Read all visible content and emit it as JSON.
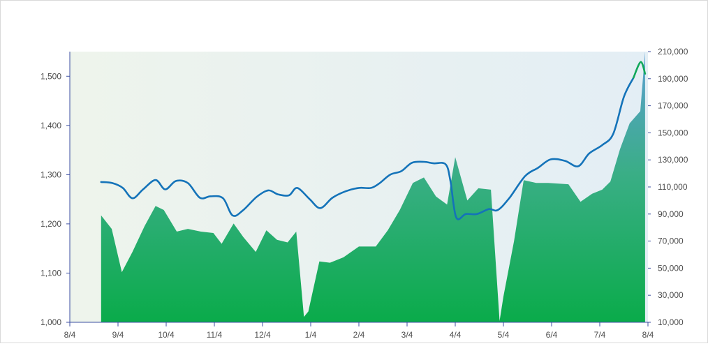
{
  "chart_data": {
    "type": "area",
    "title": "",
    "xlabel": "",
    "ylabel": "",
    "x_ticks": [
      "8/4",
      "9/4",
      "10/4",
      "11/4",
      "12/4",
      "1/4",
      "2/4",
      "3/4",
      "4/4",
      "5/4",
      "6/4",
      "7/4",
      "8/4"
    ],
    "x_range": [
      0,
      12
    ],
    "left_axis": {
      "range": [
        1000,
        1550
      ],
      "ticks": [
        "1,000",
        "1,100",
        "1,200",
        "1,300",
        "1,400",
        "1,500"
      ]
    },
    "right_axis": {
      "range": [
        10000,
        210000
      ],
      "ticks": [
        "10,000",
        "30,000",
        "50,000",
        "70,000",
        "90,000",
        "110,000",
        "130,000",
        "150,000",
        "170,000",
        "190,000",
        "210,000"
      ]
    },
    "grid": false,
    "legend": "none",
    "colors": {
      "area_bottom": "#0aab4a",
      "area_top": "#3aae86",
      "area_peak": "#5b9fd4",
      "line_main": "#1473b9",
      "line_recent": "#11a85a",
      "axis": "#3b4ea0",
      "plot_bg_left": "#eef4ec",
      "plot_bg_right": "#e3eef5"
    },
    "series": [
      {
        "axis": "right",
        "style": "area",
        "x": [
          0.65,
          0.87,
          1.08,
          1.3,
          1.55,
          1.78,
          1.95,
          2.22,
          2.45,
          2.72,
          2.98,
          3.15,
          3.4,
          3.6,
          3.86,
          4.08,
          4.3,
          4.52,
          4.7,
          4.86,
          4.95,
          5.18,
          5.4,
          5.68,
          6.0,
          6.35,
          6.6,
          6.85,
          7.12,
          7.35,
          7.6,
          7.83,
          8.0,
          8.25,
          8.48,
          8.74,
          8.92,
          9.0,
          9.22,
          9.42,
          9.68,
          9.93,
          10.35,
          10.6,
          10.84,
          11.05,
          11.22,
          11.42,
          11.62,
          11.84,
          11.94
        ],
        "values": [
          89000,
          79000,
          47000,
          62000,
          81000,
          96000,
          93000,
          77000,
          79000,
          77000,
          76000,
          68000,
          83000,
          73000,
          62000,
          78000,
          71000,
          69000,
          77000,
          14000,
          18000,
          55000,
          54000,
          58000,
          66000,
          66000,
          78000,
          93000,
          113000,
          117000,
          103000,
          97000,
          132000,
          100000,
          109000,
          108000,
          11000,
          29000,
          70000,
          115000,
          113000,
          113000,
          112000,
          99000,
          105000,
          108000,
          114000,
          138000,
          157000,
          166000,
          212000
        ]
      },
      {
        "axis": "left",
        "style": "line",
        "x": [
          0.65,
          0.88,
          1.1,
          1.3,
          1.52,
          1.78,
          1.98,
          2.2,
          2.45,
          2.7,
          2.92,
          3.18,
          3.38,
          3.6,
          3.88,
          4.12,
          4.32,
          4.55,
          4.72,
          4.98,
          5.2,
          5.45,
          5.72,
          6.0,
          6.25,
          6.42,
          6.65,
          6.88,
          7.1,
          7.35,
          7.55,
          7.8,
          7.9,
          8.02,
          8.22,
          8.45,
          8.7,
          8.88,
          9.12,
          9.45,
          9.72,
          9.98,
          10.28,
          10.55,
          10.78,
          11.05,
          11.28,
          11.5,
          11.7
        ],
        "values": [
          1285,
          1283,
          1273,
          1252,
          1270,
          1289,
          1270,
          1287,
          1283,
          1253,
          1256,
          1252,
          1217,
          1228,
          1255,
          1268,
          1260,
          1258,
          1273,
          1250,
          1232,
          1253,
          1266,
          1273,
          1273,
          1282,
          1300,
          1307,
          1324,
          1326,
          1323,
          1321,
          1287,
          1213,
          1220,
          1220,
          1230,
          1228,
          1252,
          1297,
          1314,
          1331,
          1328,
          1317,
          1343,
          1360,
          1383,
          1458,
          1497
        ]
      },
      {
        "axis": "left",
        "style": "line",
        "x": [
          11.7,
          11.85,
          11.94
        ],
        "values": [
          1497,
          1529,
          1505
        ]
      }
    ]
  }
}
